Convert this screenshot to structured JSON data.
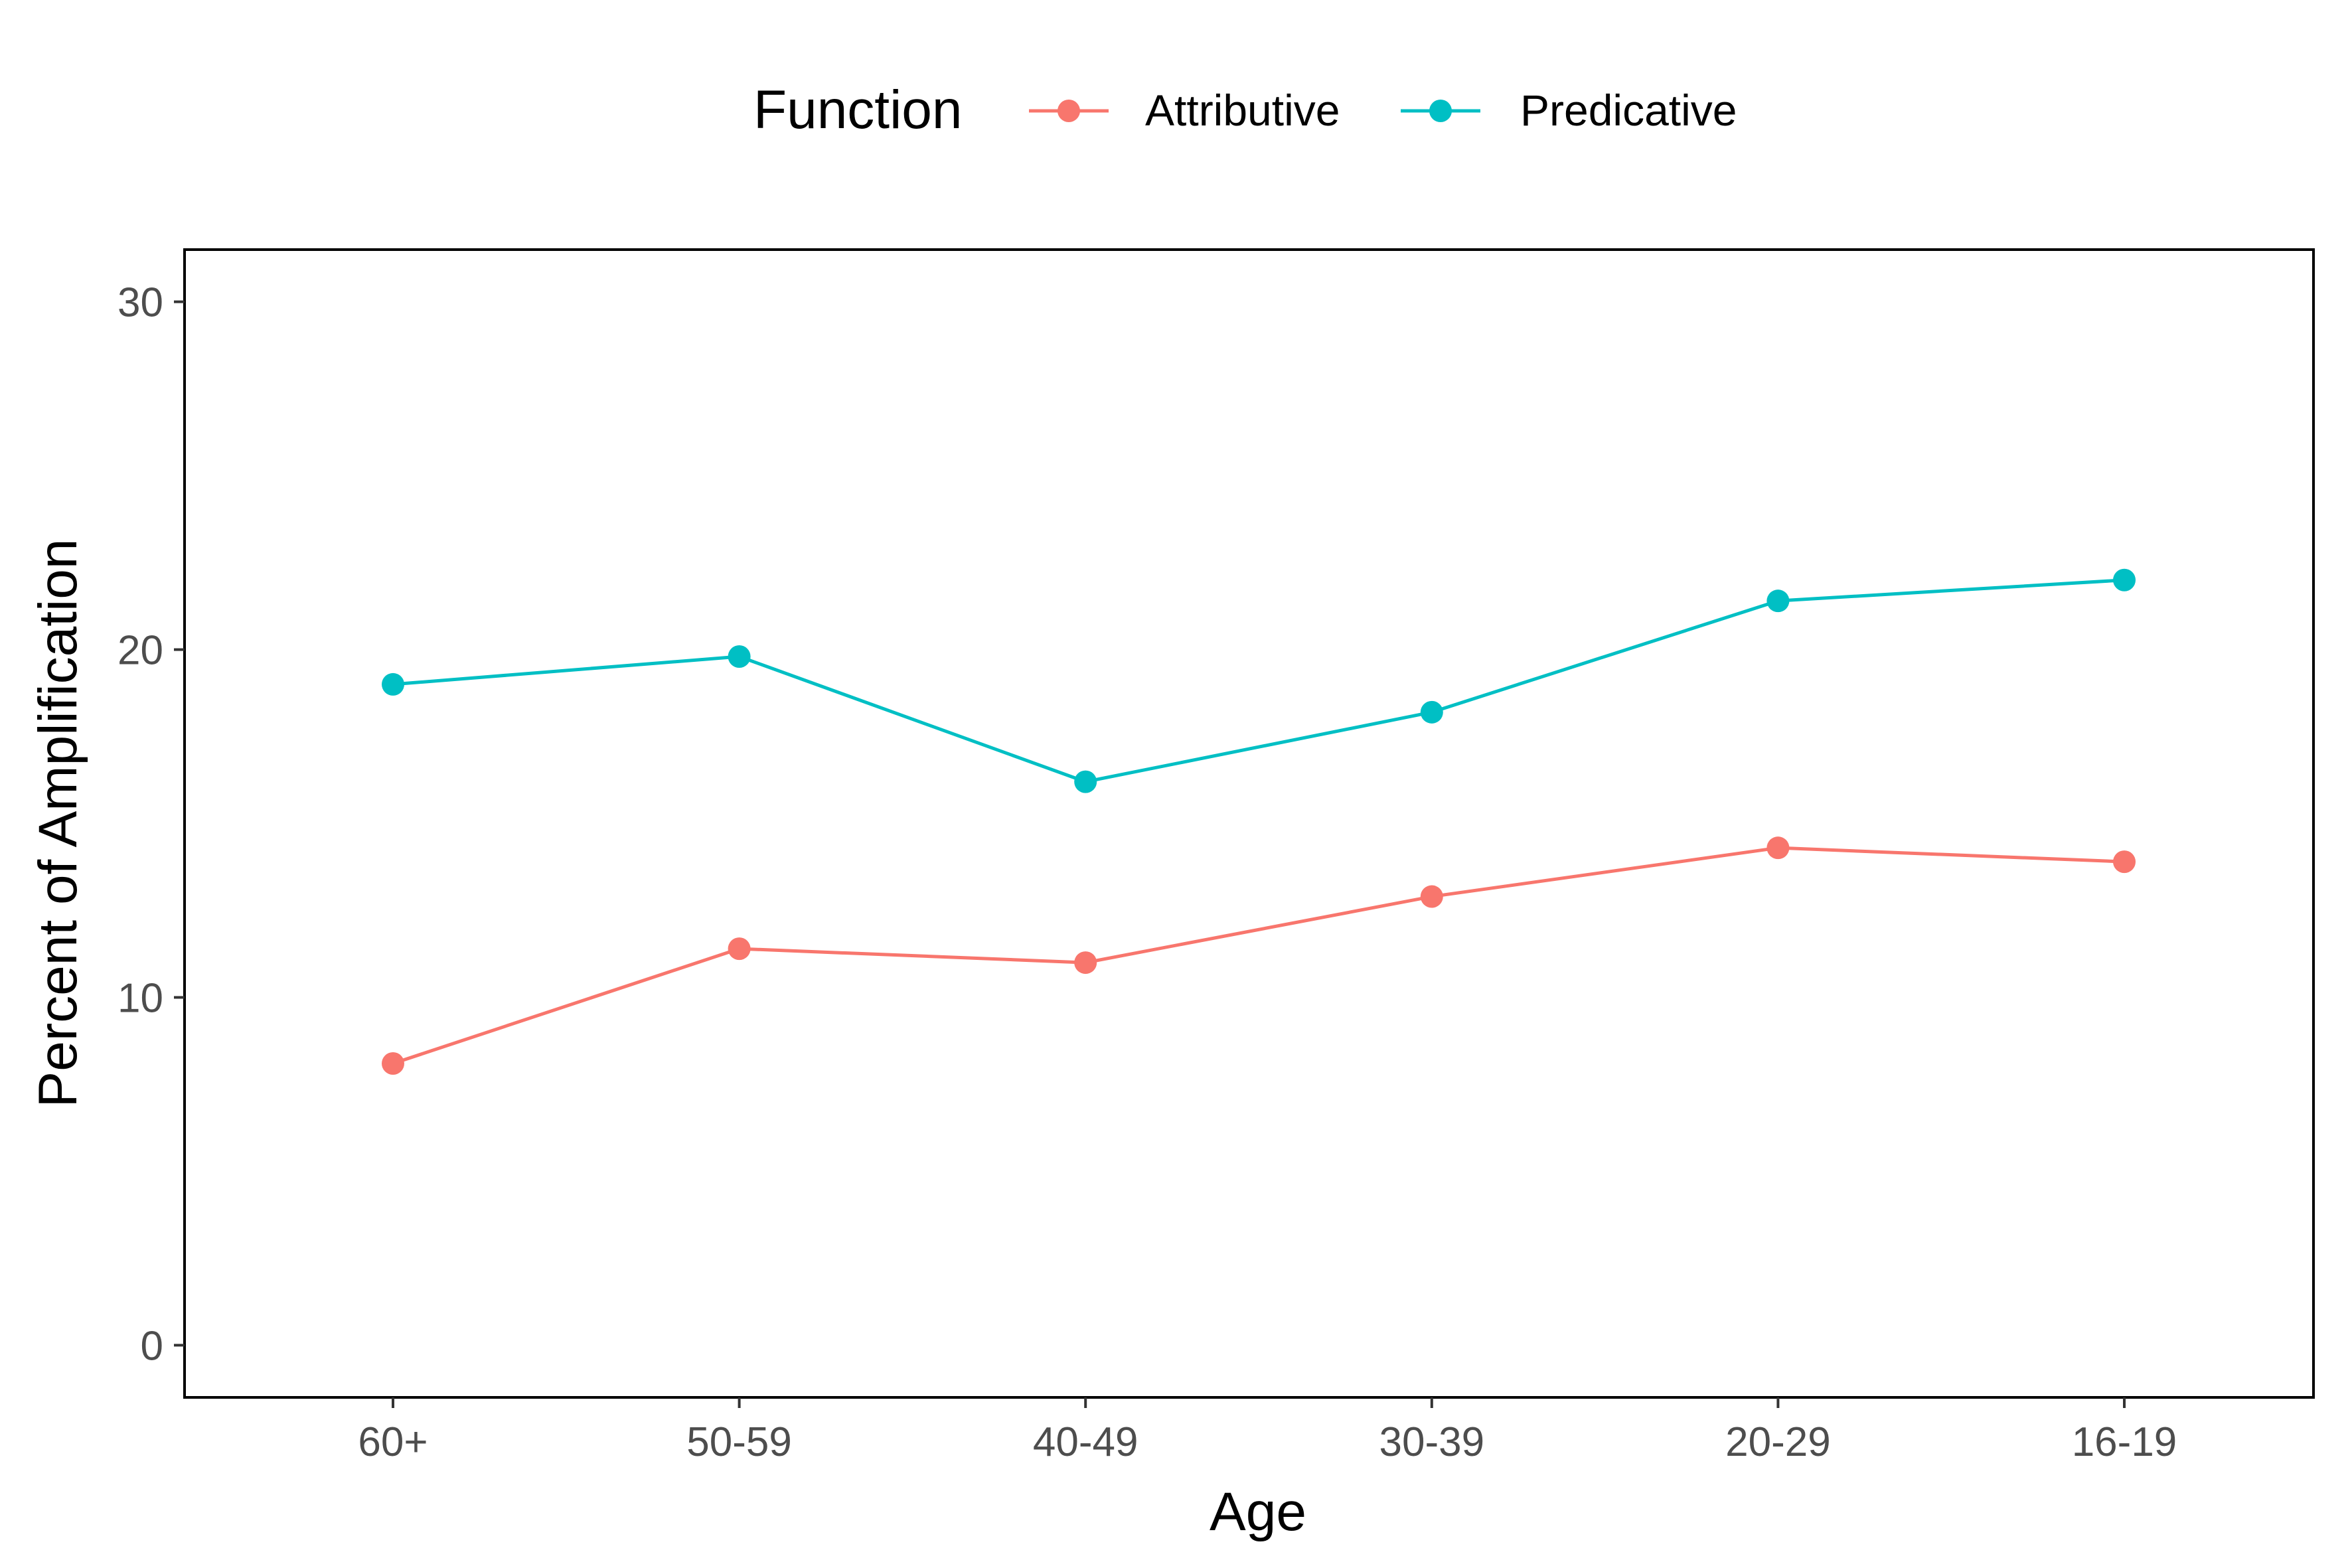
{
  "chart_data": {
    "type": "line",
    "title": "",
    "xlabel": "Age",
    "ylabel": "Percent of Amplification",
    "categories": [
      "60+",
      "50-59",
      "40-49",
      "30-39",
      "20-29",
      "16-19"
    ],
    "ylim": [
      -1.5,
      31.5
    ],
    "yticks": [
      0,
      10,
      20,
      30
    ],
    "grid": false,
    "legend": {
      "title": "Function",
      "position": "top"
    },
    "series": [
      {
        "name": "Attributive",
        "color": "#F8766D",
        "values": [
          8.1,
          11.4,
          11.0,
          12.9,
          14.3,
          13.9
        ]
      },
      {
        "name": "Predicative",
        "color": "#00BFC4",
        "values": [
          19.0,
          19.8,
          16.2,
          18.2,
          21.4,
          22.0
        ]
      }
    ]
  }
}
